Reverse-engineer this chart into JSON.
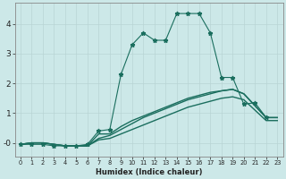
{
  "xlabel": "Humidex (Indice chaleur)",
  "x": [
    0,
    1,
    2,
    3,
    4,
    5,
    6,
    7,
    8,
    9,
    10,
    11,
    12,
    13,
    14,
    15,
    16,
    17,
    18,
    19,
    20,
    21,
    22,
    23
  ],
  "lines": [
    {
      "y": [
        -0.05,
        -0.05,
        -0.05,
        -0.1,
        -0.1,
        -0.1,
        -0.05,
        0.4,
        0.45,
        2.3,
        3.3,
        3.7,
        3.45,
        3.45,
        4.35,
        4.35,
        4.35,
        3.7,
        2.2,
        2.2,
        1.3,
        1.35,
        0.85,
        null
      ],
      "style": "-",
      "marker": "*",
      "color": "#1a7a6a",
      "linewidth": 0.8,
      "markersize": 3.5
    },
    {
      "y": [
        -0.05,
        0.0,
        0.0,
        -0.05,
        -0.1,
        -0.1,
        -0.1,
        0.3,
        0.3,
        0.55,
        0.75,
        0.9,
        1.05,
        1.2,
        1.35,
        1.5,
        1.6,
        1.7,
        1.75,
        1.8,
        1.65,
        1.25,
        0.85,
        0.85
      ],
      "style": "-",
      "marker": null,
      "color": "#1a7a6a",
      "linewidth": 1.0,
      "markersize": 0
    },
    {
      "y": [
        -0.05,
        0.0,
        0.0,
        -0.05,
        -0.1,
        -0.1,
        -0.1,
        0.15,
        0.25,
        0.45,
        0.65,
        0.85,
        1.0,
        1.15,
        1.3,
        1.45,
        1.55,
        1.65,
        1.75,
        1.8,
        1.65,
        1.25,
        0.85,
        0.85
      ],
      "style": "-",
      "marker": null,
      "color": "#1a7a6a",
      "linewidth": 1.0,
      "markersize": 0
    },
    {
      "y": [
        -0.05,
        0.0,
        0.0,
        -0.05,
        -0.1,
        -0.1,
        -0.1,
        0.1,
        0.15,
        0.3,
        0.45,
        0.6,
        0.75,
        0.9,
        1.05,
        1.2,
        1.3,
        1.4,
        1.5,
        1.55,
        1.45,
        1.1,
        0.75,
        0.75
      ],
      "style": "-",
      "marker": null,
      "color": "#1a7a6a",
      "linewidth": 1.0,
      "markersize": 0
    }
  ],
  "ylim": [
    -0.45,
    4.7
  ],
  "xlim": [
    -0.5,
    23.5
  ],
  "yticks": [
    0,
    1,
    2,
    3,
    4
  ],
  "ytick_labels": [
    "-0",
    "1",
    "2",
    "3",
    "4"
  ],
  "xtick_labels": [
    "0",
    "1",
    "2",
    "3",
    "4",
    "5",
    "6",
    "7",
    "8",
    "9",
    "10",
    "11",
    "12",
    "13",
    "14",
    "15",
    "16",
    "17",
    "18",
    "19",
    "20",
    "21",
    "22",
    "23"
  ],
  "bg_color": "#cce8e8",
  "grid_color": "#b8d4d4",
  "text_color": "#222222",
  "line_color": "#1a6e5e"
}
